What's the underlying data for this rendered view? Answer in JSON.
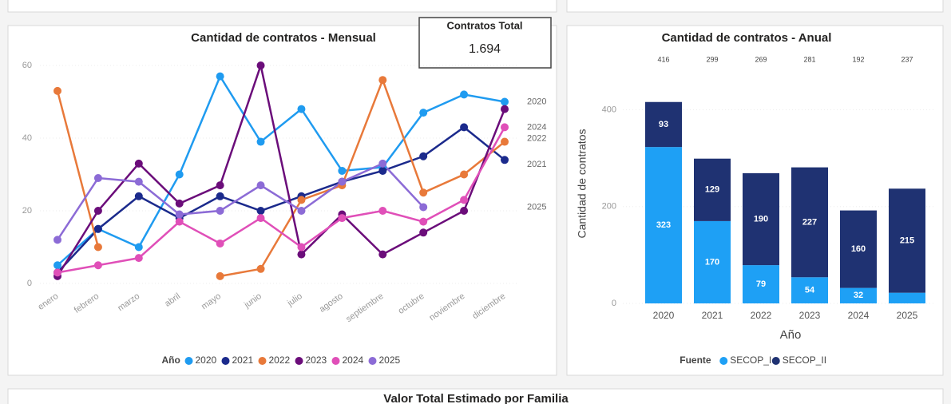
{
  "chart_data": [
    {
      "type": "line",
      "title": "Cantidad de contratos - Mensual",
      "categories": [
        "enero",
        "febrero",
        "marzo",
        "abril",
        "mayo",
        "junio",
        "julio",
        "agosto",
        "septiembre",
        "octubre",
        "noviembre",
        "diciembre"
      ],
      "series": [
        {
          "name": "2020",
          "color": "#1f9bf0",
          "end_label": true,
          "values": [
            5,
            15,
            10,
            30,
            57,
            39,
            48,
            31,
            32,
            47,
            52,
            50
          ]
        },
        {
          "name": "2021",
          "color": "#1b2a8c",
          "end_label": true,
          "values": [
            3,
            15,
            24,
            18,
            24,
            20,
            24,
            28,
            31,
            35,
            43,
            34
          ]
        },
        {
          "name": "2022",
          "color": "#e8793a",
          "end_label": true,
          "values": [
            53,
            10,
            null,
            null,
            2,
            4,
            23,
            27,
            56,
            25,
            30,
            39
          ]
        },
        {
          "name": "2023",
          "color": "#6b0d7a",
          "end_label": false,
          "values": [
            2,
            20,
            33,
            22,
            27,
            60,
            8,
            19,
            8,
            14,
            20,
            48
          ]
        },
        {
          "name": "2024",
          "color": "#e04fb8",
          "end_label": true,
          "values": [
            3,
            5,
            7,
            17,
            11,
            18,
            10,
            18,
            20,
            17,
            23,
            43
          ]
        },
        {
          "name": "2025",
          "color": "#8c6bd6",
          "end_label": true,
          "values": [
            12,
            29,
            28,
            19,
            20,
            27,
            20,
            28,
            33,
            21,
            null,
            null
          ]
        }
      ],
      "legend_title": "Año",
      "ylim": [
        0,
        60
      ],
      "yticks": [
        0,
        20,
        40,
        60
      ],
      "grid": true
    },
    {
      "type": "stacked_bar",
      "title": "Cantidad de contratos - Anual",
      "categories": [
        "2020",
        "2021",
        "2022",
        "2023",
        "2024",
        "2025"
      ],
      "series": [
        {
          "name": "SECOP_I",
          "color": "#1ea0f5",
          "values": [
            323,
            170,
            79,
            54,
            32,
            22
          ],
          "value_labels": [
            "323",
            "170",
            "79",
            "54",
            "32",
            null
          ]
        },
        {
          "name": "SECOP_II",
          "color": "#1f3272",
          "values": [
            93,
            129,
            190,
            227,
            160,
            215
          ],
          "value_labels": [
            "93",
            "129",
            "190",
            "227",
            "160",
            "215"
          ]
        }
      ],
      "totals": [
        416,
        299,
        269,
        281,
        192,
        237
      ],
      "xlabel": "Año",
      "ylabel": "Cantidad de contratos",
      "legend_title": "Fuente",
      "ylim": [
        0,
        470
      ],
      "yticks": [
        0,
        200,
        400
      ],
      "grid": true
    }
  ],
  "kpi": {
    "title": "Contratos Total",
    "value": 1694,
    "value_label": "1.694"
  },
  "bottom_panel": {
    "title": "Valor Total Estimado por Familia"
  }
}
